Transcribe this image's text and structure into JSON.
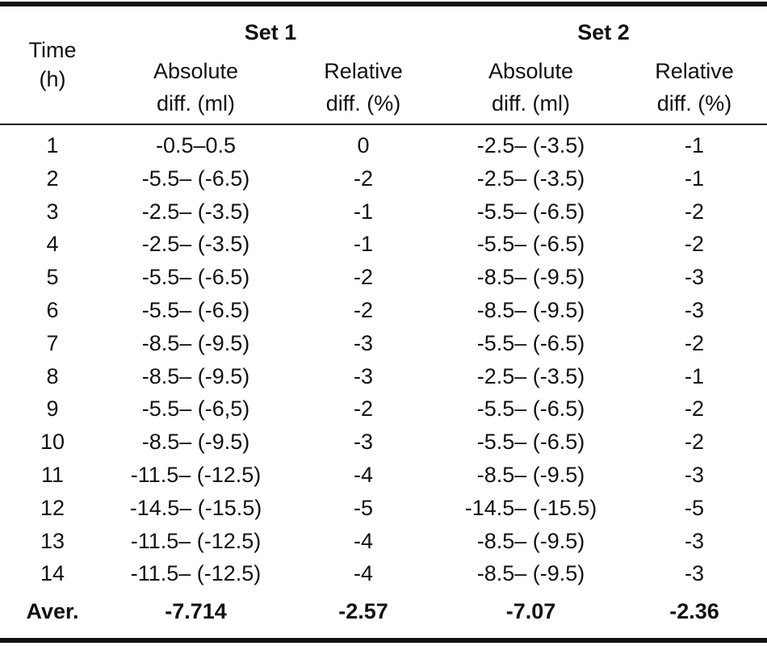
{
  "header": {
    "time_label_line1": "Time",
    "time_label_line2": "(h)",
    "set1_label": "Set 1",
    "set2_label": "Set 2",
    "abs_label_line1": "Absolute",
    "abs_label_line2": "diff. (ml)",
    "rel_label_line1": "Relative",
    "rel_label_line2": "diff. (%)"
  },
  "rows": [
    {
      "time": "1",
      "abs1": "-0.5–0.5",
      "rel1": "0",
      "abs2": "-2.5– (-3.5)",
      "rel2": "-1"
    },
    {
      "time": "2",
      "abs1": "-5.5– (-6.5)",
      "rel1": "-2",
      "abs2": "-2.5– (-3.5)",
      "rel2": "-1"
    },
    {
      "time": "3",
      "abs1": "-2.5– (-3.5)",
      "rel1": "-1",
      "abs2": "-5.5– (-6.5)",
      "rel2": "-2"
    },
    {
      "time": "4",
      "abs1": "-2.5– (-3.5)",
      "rel1": "-1",
      "abs2": "-5.5– (-6.5)",
      "rel2": "-2"
    },
    {
      "time": "5",
      "abs1": "-5.5– (-6.5)",
      "rel1": "-2",
      "abs2": "-8.5– (-9.5)",
      "rel2": "-3"
    },
    {
      "time": "6",
      "abs1": "-5.5– (-6.5)",
      "rel1": "-2",
      "abs2": "-8.5– (-9.5)",
      "rel2": "-3"
    },
    {
      "time": "7",
      "abs1": "-8.5– (-9.5)",
      "rel1": "-3",
      "abs2": "-5.5– (-6.5)",
      "rel2": "-2"
    },
    {
      "time": "8",
      "abs1": "-8.5– (-9.5)",
      "rel1": "-3",
      "abs2": "-2.5– (-3.5)",
      "rel2": "-1"
    },
    {
      "time": "9",
      "abs1": "-5.5– (-6,5)",
      "rel1": "-2",
      "abs2": "-5.5– (-6.5)",
      "rel2": "-2"
    },
    {
      "time": "10",
      "abs1": "-8.5– (-9.5)",
      "rel1": "-3",
      "abs2": "-5.5– (-6.5)",
      "rel2": "-2"
    },
    {
      "time": "11",
      "abs1": "-11.5– (-12.5)",
      "rel1": "-4",
      "abs2": "-8.5– (-9.5)",
      "rel2": "-3"
    },
    {
      "time": "12",
      "abs1": "-14.5– (-15.5)",
      "rel1": "-5",
      "abs2": "-14.5– (-15.5)",
      "rel2": "-5"
    },
    {
      "time": "13",
      "abs1": "-11.5– (-12.5)",
      "rel1": "-4",
      "abs2": "-8.5– (-9.5)",
      "rel2": "-3"
    },
    {
      "time": "14",
      "abs1": "-11.5– (-12.5)",
      "rel1": "-4",
      "abs2": "-8.5– (-9.5)",
      "rel2": "-3"
    }
  ],
  "average": {
    "label": "Aver.",
    "abs1": "-7.714",
    "rel1": "-2.57",
    "abs2": "-7.07",
    "rel2": "-2.36"
  }
}
